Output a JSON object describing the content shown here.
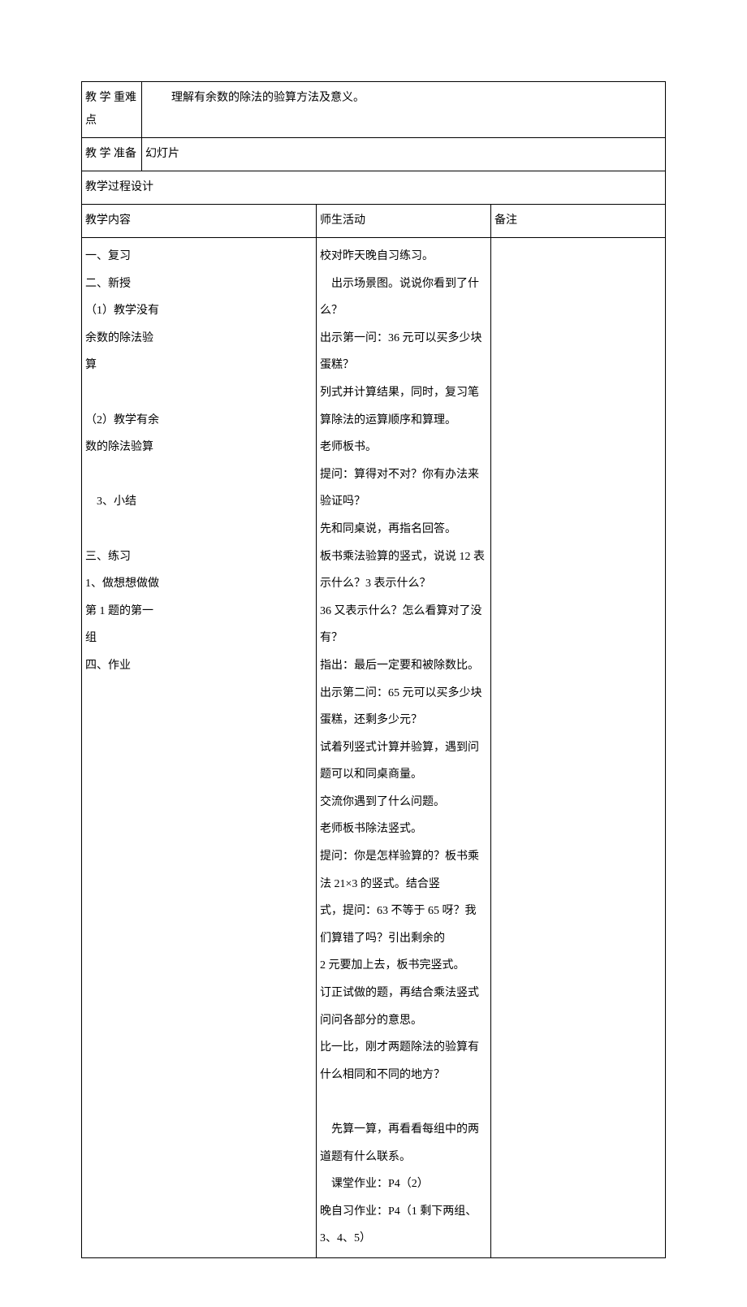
{
  "row1": {
    "label": "教 学 重难点",
    "content": "理解有余数的除法的验算方法及意义。"
  },
  "row2": {
    "label": "教 学 准备",
    "content": "幻灯片"
  },
  "row3": {
    "label": "教学过程设计"
  },
  "row4": {
    "col1": "教学内容",
    "col2": "师生活动",
    "col3": "备注"
  },
  "row5": {
    "left": [
      "一、复习",
      "二、新授",
      "（1）教学没有",
      "余数的除法验",
      "算",
      "",
      "（2）教学有余",
      "数的除法验算",
      "",
      "　3、小结",
      "",
      "三、练习",
      "1、做想想做做",
      "第 1 题的第一",
      "组",
      "四、作业"
    ],
    "mid": [
      "校对昨天晚自习练习。",
      "　出示场景图。说说你看到了什么？",
      "出示第一问：36 元可以买多少块蛋糕？",
      "列式并计算结果，同时，复习笔算除法的运算顺序和算理。",
      "老师板书。",
      "提问：算得对不对？你有办法来验证吗？",
      "先和同桌说，再指名回答。",
      "板书乘法验算的竖式，说说 12 表示什么？3 表示什么？",
      "36 又表示什么？怎么看算对了没有？",
      "指出：最后一定要和被除数比。",
      "出示第二问：65 元可以买多少块蛋糕，还剩多少元？",
      "试着列竖式计算并验算，遇到问题可以和同桌商量。",
      "交流你遇到了什么问题。",
      "老师板书除法竖式。",
      "提问：你是怎样验算的？板书乘法 21×3 的竖式。结合竖",
      "式，提问：63 不等于 65 呀？我们算错了吗？引出剩余的",
      "2 元要加上去，板书完竖式。",
      "订正试做的题，再结合乘法竖式问问各部分的意思。",
      "比一比，刚才两题除法的验算有什么相同和不同的地方？",
      "",
      "　先算一算，再看看每组中的两道题有什么联系。",
      "　课堂作业：P4（2）",
      "晚自习作业：P4（1 剩下两组、3、4、5）"
    ],
    "right": ""
  }
}
